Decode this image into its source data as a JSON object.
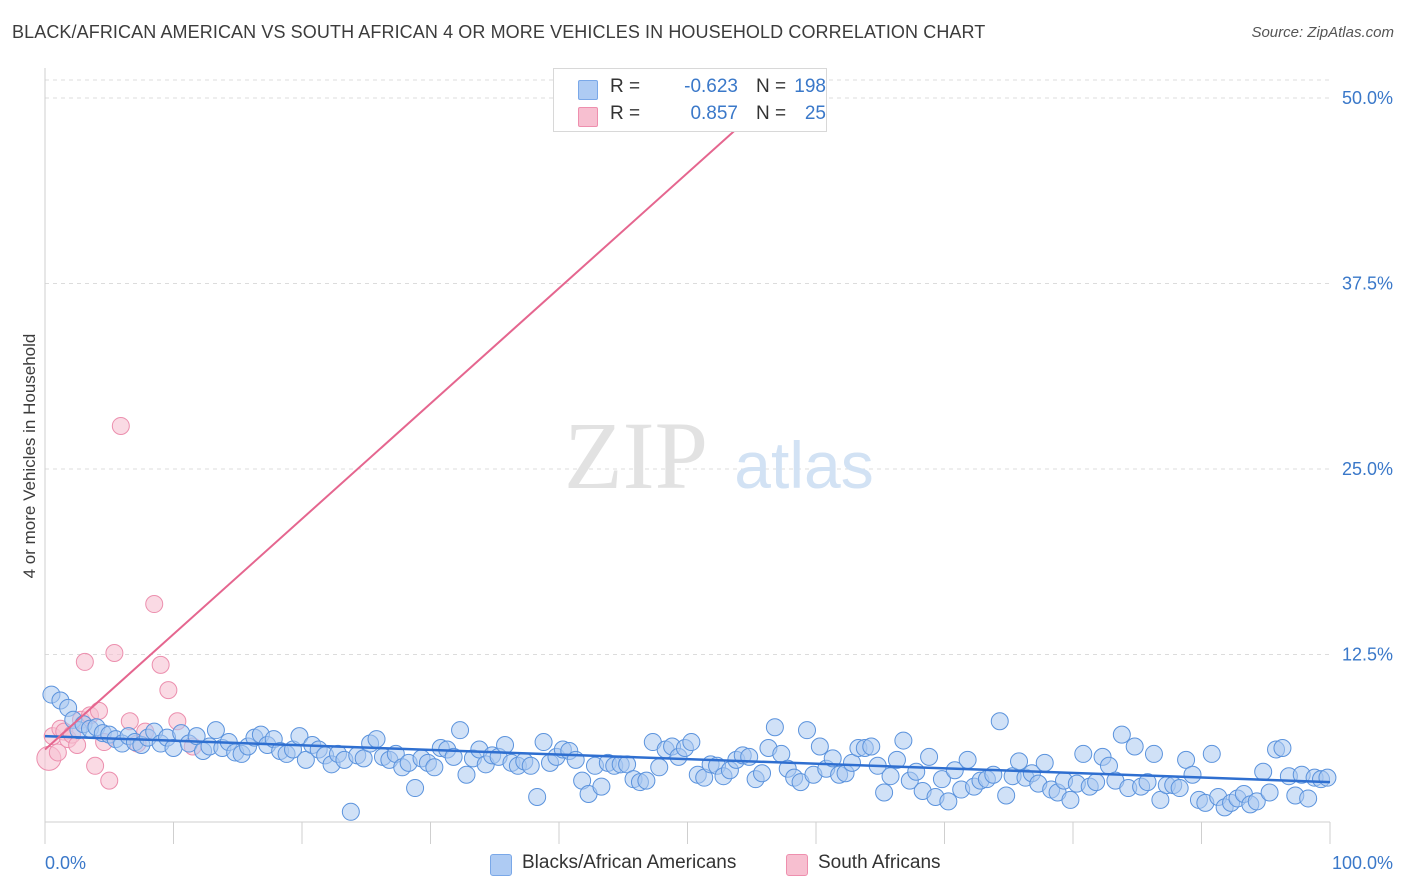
{
  "title": "BLACK/AFRICAN AMERICAN VS SOUTH AFRICAN 4 OR MORE VEHICLES IN HOUSEHOLD CORRELATION CHART",
  "source": "Source: ZipAtlas.com",
  "watermark": {
    "zip": "ZIP",
    "atlas": "atlas"
  },
  "legend": {
    "r_label": "R =",
    "n_label": "N =",
    "rows": [
      {
        "r": "-0.623",
        "n": "198",
        "swatch": "#aecbf3",
        "border": "#7aa8e8"
      },
      {
        "r": "0.857",
        "n": "25",
        "swatch": "#f7bfd0",
        "border": "#ee8fae"
      }
    ]
  },
  "bottom_legend": [
    {
      "label": "Blacks/African Americans",
      "swatch": "#aecbf3",
      "border": "#7aa8e8"
    },
    {
      "label": "South Africans",
      "swatch": "#f7bfd0",
      "border": "#ee8fae"
    }
  ],
  "colors": {
    "blue_fill": "#a9c8f0",
    "blue_stroke": "#5b93dd",
    "blue_line": "#2f6fd0",
    "pink_fill": "#f7c2d2",
    "pink_stroke": "#ec8fae",
    "pink_line": "#e5668f",
    "tick_text": "#3a78c9",
    "grid": "#dcdcdc"
  },
  "chart_data": {
    "type": "scatter",
    "title": "BLACK/AFRICAN AMERICAN VS SOUTH AFRICAN 4 OR MORE VEHICLES IN HOUSEHOLD CORRELATION CHART",
    "xlabel": "",
    "ylabel": "4 or more Vehicles in Household",
    "xlim": [
      0,
      100
    ],
    "ylim": [
      0,
      50
    ],
    "x_tick_labels": [
      "0.0%",
      "100.0%"
    ],
    "y_ticks": [
      12.5,
      25.0,
      37.5,
      50.0
    ],
    "y_tick_labels": [
      "12.5%",
      "25.0%",
      "37.5%",
      "50.0%"
    ],
    "grid": "horizontal dashed",
    "legend_position": "top-center",
    "series": [
      {
        "name": "Blacks/African Americans",
        "r": -0.623,
        "n": 198,
        "trend": {
          "x": [
            0,
            100
          ],
          "y": [
            7.0,
            3.9
          ]
        },
        "points": [
          [
            0.5,
            9.8
          ],
          [
            1.2,
            9.4
          ],
          [
            1.8,
            8.9
          ],
          [
            2.2,
            8.1
          ],
          [
            2.6,
            7.4
          ],
          [
            3.0,
            7.8
          ],
          [
            3.5,
            7.5
          ],
          [
            4.0,
            7.6
          ],
          [
            4.5,
            7.2
          ],
          [
            5.0,
            7.1
          ],
          [
            5.5,
            6.8
          ],
          [
            6.0,
            6.5
          ],
          [
            6.5,
            7.0
          ],
          [
            7.0,
            6.6
          ],
          [
            7.5,
            6.4
          ],
          [
            8.0,
            6.9
          ],
          [
            8.5,
            7.3
          ],
          [
            9.0,
            6.5
          ],
          [
            9.5,
            6.9
          ],
          [
            10.0,
            6.2
          ],
          [
            10.6,
            7.2
          ],
          [
            11.2,
            6.5
          ],
          [
            11.8,
            7.0
          ],
          [
            12.3,
            6.0
          ],
          [
            12.8,
            6.3
          ],
          [
            13.3,
            7.4
          ],
          [
            13.8,
            6.2
          ],
          [
            14.3,
            6.6
          ],
          [
            14.8,
            5.9
          ],
          [
            15.3,
            5.8
          ],
          [
            15.8,
            6.3
          ],
          [
            16.3,
            6.9
          ],
          [
            16.8,
            7.1
          ],
          [
            17.3,
            6.4
          ],
          [
            17.8,
            6.8
          ],
          [
            18.3,
            6.0
          ],
          [
            18.8,
            5.8
          ],
          [
            19.3,
            6.1
          ],
          [
            19.8,
            7.0
          ],
          [
            20.3,
            5.4
          ],
          [
            20.8,
            6.4
          ],
          [
            21.3,
            6.1
          ],
          [
            21.8,
            5.7
          ],
          [
            22.3,
            5.1
          ],
          [
            22.8,
            5.8
          ],
          [
            23.3,
            5.4
          ],
          [
            23.8,
            1.9
          ],
          [
            24.3,
            5.7
          ],
          [
            24.8,
            5.5
          ],
          [
            25.3,
            6.5
          ],
          [
            25.8,
            6.8
          ],
          [
            26.3,
            5.6
          ],
          [
            26.8,
            5.4
          ],
          [
            27.3,
            5.8
          ],
          [
            27.8,
            4.9
          ],
          [
            28.3,
            5.2
          ],
          [
            28.8,
            3.5
          ],
          [
            29.3,
            5.5
          ],
          [
            29.8,
            5.2
          ],
          [
            30.3,
            4.9
          ],
          [
            30.8,
            6.2
          ],
          [
            31.3,
            6.1
          ],
          [
            31.8,
            5.6
          ],
          [
            32.3,
            7.4
          ],
          [
            32.8,
            4.4
          ],
          [
            33.3,
            5.5
          ],
          [
            33.8,
            6.1
          ],
          [
            34.3,
            5.1
          ],
          [
            34.8,
            5.7
          ],
          [
            35.3,
            5.6
          ],
          [
            35.8,
            6.4
          ],
          [
            36.3,
            5.2
          ],
          [
            36.8,
            5.0
          ],
          [
            37.3,
            5.3
          ],
          [
            37.8,
            5.0
          ],
          [
            38.3,
            2.9
          ],
          [
            38.8,
            6.6
          ],
          [
            39.3,
            5.2
          ],
          [
            39.8,
            5.6
          ],
          [
            40.3,
            6.1
          ],
          [
            40.8,
            6.0
          ],
          [
            41.3,
            5.4
          ],
          [
            41.8,
            4.0
          ],
          [
            42.3,
            3.1
          ],
          [
            42.8,
            5.0
          ],
          [
            43.3,
            3.6
          ],
          [
            43.8,
            5.2
          ],
          [
            44.3,
            5.0
          ],
          [
            44.8,
            5.1
          ],
          [
            45.3,
            5.1
          ],
          [
            45.8,
            4.1
          ],
          [
            46.3,
            3.9
          ],
          [
            46.8,
            4.0
          ],
          [
            47.3,
            6.6
          ],
          [
            47.8,
            4.9
          ],
          [
            48.3,
            6.1
          ],
          [
            48.8,
            6.3
          ],
          [
            49.3,
            5.6
          ],
          [
            49.8,
            6.2
          ],
          [
            50.3,
            6.6
          ],
          [
            50.8,
            4.4
          ],
          [
            51.3,
            4.2
          ],
          [
            51.8,
            5.1
          ],
          [
            52.3,
            5.0
          ],
          [
            52.8,
            4.3
          ],
          [
            53.3,
            4.7
          ],
          [
            53.8,
            5.4
          ],
          [
            54.3,
            5.7
          ],
          [
            54.8,
            5.6
          ],
          [
            55.3,
            4.1
          ],
          [
            55.8,
            4.5
          ],
          [
            56.3,
            6.2
          ],
          [
            56.8,
            7.6
          ],
          [
            57.3,
            5.8
          ],
          [
            57.8,
            4.8
          ],
          [
            58.3,
            4.2
          ],
          [
            58.8,
            3.9
          ],
          [
            59.3,
            7.4
          ],
          [
            59.8,
            4.4
          ],
          [
            60.3,
            6.3
          ],
          [
            60.8,
            4.8
          ],
          [
            61.3,
            5.5
          ],
          [
            61.8,
            4.4
          ],
          [
            62.3,
            4.5
          ],
          [
            62.8,
            5.2
          ],
          [
            63.3,
            6.2
          ],
          [
            63.8,
            6.2
          ],
          [
            64.3,
            6.3
          ],
          [
            64.8,
            5.0
          ],
          [
            65.3,
            3.2
          ],
          [
            65.8,
            4.3
          ],
          [
            66.3,
            5.4
          ],
          [
            66.8,
            6.7
          ],
          [
            67.3,
            4.0
          ],
          [
            67.8,
            4.6
          ],
          [
            68.3,
            3.3
          ],
          [
            68.8,
            5.6
          ],
          [
            69.3,
            2.9
          ],
          [
            69.8,
            4.1
          ],
          [
            70.3,
            2.6
          ],
          [
            70.8,
            4.7
          ],
          [
            71.3,
            3.4
          ],
          [
            71.8,
            5.4
          ],
          [
            72.3,
            3.6
          ],
          [
            72.8,
            4.0
          ],
          [
            73.3,
            4.1
          ],
          [
            73.8,
            4.4
          ],
          [
            74.3,
            8.0
          ],
          [
            74.8,
            3.0
          ],
          [
            75.3,
            4.3
          ],
          [
            75.8,
            5.3
          ],
          [
            76.3,
            4.2
          ],
          [
            76.8,
            4.5
          ],
          [
            77.3,
            3.8
          ],
          [
            77.8,
            5.2
          ],
          [
            78.3,
            3.4
          ],
          [
            78.8,
            3.2
          ],
          [
            79.3,
            4.0
          ],
          [
            79.8,
            2.7
          ],
          [
            80.3,
            3.8
          ],
          [
            80.8,
            5.8
          ],
          [
            81.3,
            3.6
          ],
          [
            81.8,
            3.9
          ],
          [
            82.3,
            5.6
          ],
          [
            82.8,
            5.0
          ],
          [
            83.3,
            4.0
          ],
          [
            83.8,
            7.1
          ],
          [
            84.3,
            3.5
          ],
          [
            84.8,
            6.3
          ],
          [
            85.3,
            3.6
          ],
          [
            85.8,
            3.9
          ],
          [
            86.3,
            5.8
          ],
          [
            86.8,
            2.7
          ],
          [
            87.3,
            3.7
          ],
          [
            87.8,
            3.7
          ],
          [
            88.3,
            3.5
          ],
          [
            88.8,
            5.4
          ],
          [
            89.3,
            4.4
          ],
          [
            89.8,
            2.7
          ],
          [
            90.3,
            2.5
          ],
          [
            90.8,
            5.8
          ],
          [
            91.3,
            2.9
          ],
          [
            91.8,
            2.2
          ],
          [
            92.3,
            2.5
          ],
          [
            92.8,
            2.8
          ],
          [
            93.3,
            3.1
          ],
          [
            93.8,
            2.4
          ],
          [
            94.3,
            2.6
          ],
          [
            94.8,
            4.6
          ],
          [
            95.3,
            3.2
          ],
          [
            95.8,
            6.1
          ],
          [
            96.3,
            6.2
          ],
          [
            96.8,
            4.3
          ],
          [
            97.3,
            3.0
          ],
          [
            97.8,
            4.4
          ],
          [
            98.3,
            2.8
          ],
          [
            98.8,
            4.2
          ],
          [
            99.3,
            4.1
          ],
          [
            99.8,
            4.2
          ]
        ]
      },
      {
        "name": "South Africans",
        "r": 0.857,
        "n": 25,
        "trend": {
          "x": [
            0,
            56.5
          ],
          "y": [
            6.1,
            50.0
          ]
        },
        "points": [
          [
            0.3,
            5.5
          ],
          [
            0.6,
            7.0
          ],
          [
            1.0,
            5.9
          ],
          [
            1.2,
            7.5
          ],
          [
            1.5,
            7.3
          ],
          [
            1.8,
            6.8
          ],
          [
            2.1,
            7.1
          ],
          [
            2.5,
            6.4
          ],
          [
            2.8,
            8.1
          ],
          [
            3.1,
            12.0
          ],
          [
            3.5,
            8.4
          ],
          [
            3.9,
            5.0
          ],
          [
            4.2,
            8.7
          ],
          [
            4.6,
            6.6
          ],
          [
            5.0,
            4.0
          ],
          [
            5.4,
            12.6
          ],
          [
            5.9,
            27.9
          ],
          [
            6.6,
            8.0
          ],
          [
            7.2,
            6.5
          ],
          [
            7.8,
            7.3
          ],
          [
            8.5,
            15.9
          ],
          [
            9.0,
            11.8
          ],
          [
            9.6,
            10.1
          ],
          [
            10.3,
            8.0
          ],
          [
            11.5,
            6.3
          ]
        ]
      }
    ]
  }
}
